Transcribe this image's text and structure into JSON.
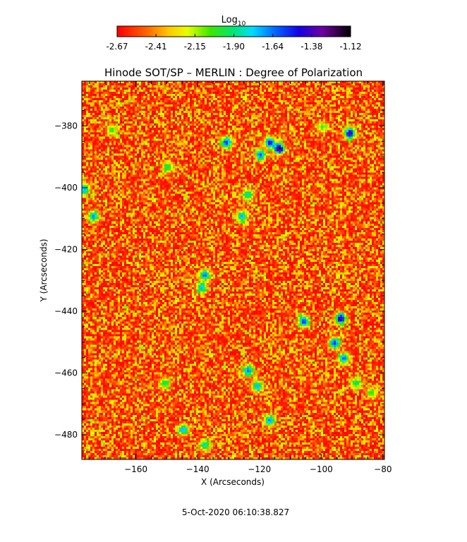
{
  "chart_data": {
    "type": "heatmap",
    "title": "Hinode SOT/SP – MERLIN : Degree of Polarization",
    "xlabel": "X (Arcseconds)",
    "ylabel": "Y (Arcseconds)",
    "xlim": [
      -177.5,
      -79.5
    ],
    "ylim": [
      -488,
      -365.5
    ],
    "x_ticks": [
      -160,
      -140,
      -120,
      -100,
      -80
    ],
    "y_ticks": [
      -380,
      -400,
      -420,
      -440,
      -460,
      -480
    ],
    "colorbar": {
      "title_base": "Log",
      "title_sub": "10",
      "ticks": [
        "-2.67",
        "-2.41",
        "-2.15",
        "-1.90",
        "-1.64",
        "-1.38",
        "-1.12"
      ],
      "range": [
        -2.67,
        -1.12
      ],
      "colormap": "rainbow (red → yellow → green → cyan → blue → purple → black)"
    },
    "features": [
      {
        "x": -114,
        "y": -387,
        "value": -1.15
      },
      {
        "x": -117,
        "y": -385,
        "value": -1.4
      },
      {
        "x": -120,
        "y": -389,
        "value": -1.55
      },
      {
        "x": -131,
        "y": -385,
        "value": -1.5
      },
      {
        "x": -91,
        "y": -382,
        "value": -1.3
      },
      {
        "x": -94,
        "y": -442,
        "value": -1.3
      },
      {
        "x": -96,
        "y": -450,
        "value": -1.5
      },
      {
        "x": -93,
        "y": -455,
        "value": -1.6
      },
      {
        "x": -106,
        "y": -443,
        "value": -1.5
      },
      {
        "x": -124,
        "y": -459,
        "value": -1.6
      },
      {
        "x": -121,
        "y": -464,
        "value": -1.7
      },
      {
        "x": -126,
        "y": -409,
        "value": -1.7
      },
      {
        "x": -124,
        "y": -402,
        "value": -1.8
      },
      {
        "x": -138,
        "y": -428,
        "value": -1.6
      },
      {
        "x": -139,
        "y": -432,
        "value": -1.7
      },
      {
        "x": -174,
        "y": -409,
        "value": -1.65
      },
      {
        "x": -177,
        "y": -400,
        "value": -1.7
      },
      {
        "x": -117,
        "y": -475,
        "value": -1.65
      },
      {
        "x": -145,
        "y": -478,
        "value": -1.7
      },
      {
        "x": -138,
        "y": -483,
        "value": -1.8
      },
      {
        "x": -151,
        "y": -463,
        "value": -1.9
      },
      {
        "x": -89,
        "y": -463,
        "value": -1.9
      },
      {
        "x": -150,
        "y": -393,
        "value": -1.9
      },
      {
        "x": -168,
        "y": -381,
        "value": -2.0
      },
      {
        "x": -100,
        "y": -380,
        "value": -2.05
      },
      {
        "x": -84,
        "y": -466,
        "value": -2.0
      }
    ]
  },
  "footer": {
    "timestamp": "5-Oct-2020 06:10:38.827"
  }
}
